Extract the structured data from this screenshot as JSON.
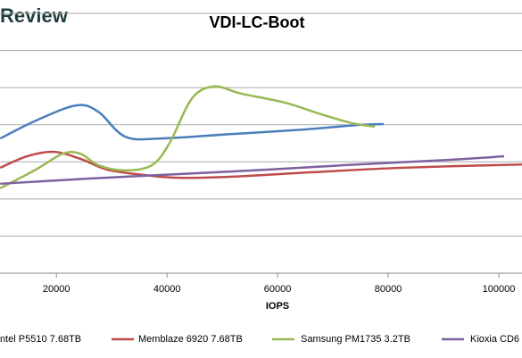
{
  "brand": "Review",
  "chart_data": {
    "type": "line",
    "title": "VDI-LC-Boot",
    "x_label": "IOPS",
    "xlim": [
      9800,
      104200
    ],
    "xticks": [
      20000,
      40000,
      60000,
      80000,
      100000
    ],
    "ylim": [
      0,
      7
    ],
    "yticks": [
      0,
      1,
      2,
      3,
      4,
      5,
      6,
      7
    ],
    "grid": true,
    "series": [
      {
        "name": "ntel P5510 7.68TB",
        "color": "#4a7ebb",
        "x": [
          9839,
          16290,
          23548,
          27581,
          32419,
          38871,
          51774,
          64677,
          74355,
          79194
        ],
        "values": [
          3.63,
          4.11,
          4.52,
          4.35,
          3.68,
          3.63,
          3.75,
          3.87,
          3.99,
          4.02
        ]
      },
      {
        "name": "Memblaze 6920 7.68TB",
        "color": "#be4b48",
        "x": [
          9839,
          14677,
          19516,
          24355,
          29194,
          35645,
          42097,
          51774,
          66290,
          82419,
          104194
        ],
        "values": [
          2.84,
          3.15,
          3.27,
          3.08,
          2.79,
          2.65,
          2.57,
          2.6,
          2.72,
          2.84,
          2.93
        ]
      },
      {
        "name": "Samsung PM1735 3.2TB",
        "color": "#98b954",
        "x": [
          9839,
          16290,
          21129,
          24355,
          27581,
          32419,
          37258,
          40484,
          44516,
          48548,
          53387,
          61452,
          67903,
          73548,
          77581
        ],
        "values": [
          2.29,
          2.79,
          3.22,
          3.22,
          2.91,
          2.77,
          2.91,
          3.51,
          4.71,
          5.03,
          4.84,
          4.59,
          4.28,
          4.04,
          3.95
        ]
      },
      {
        "name": "Kioxia CD6",
        "color": "#7d60a0",
        "x": [
          9839,
          25968,
          42097,
          58226,
          74355,
          90484,
          100968
        ],
        "values": [
          2.41,
          2.55,
          2.67,
          2.79,
          2.93,
          3.05,
          3.15
        ]
      }
    ]
  }
}
